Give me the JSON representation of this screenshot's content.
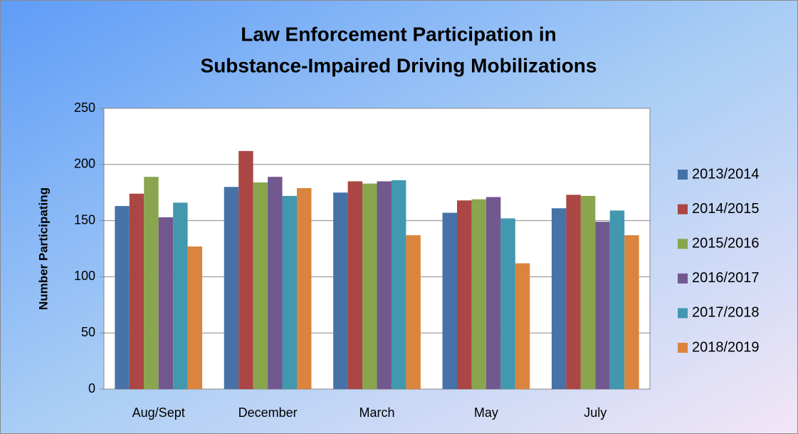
{
  "chart_data": {
    "type": "bar",
    "title": [
      "Law Enforcement Participation in",
      "Substance-Impaired Driving Mobilizations"
    ],
    "y_label": "Number Participating",
    "categories": [
      "Aug/Sept",
      "December",
      "March",
      "May",
      "July"
    ],
    "series": [
      {
        "name": "2013/2014",
        "color": "#4672a8",
        "values": [
          163,
          180,
          175,
          157,
          161
        ]
      },
      {
        "name": "2014/2015",
        "color": "#aa4643",
        "values": [
          174,
          212,
          185,
          168,
          173
        ]
      },
      {
        "name": "2015/2016",
        "color": "#89a54e",
        "values": [
          189,
          184,
          183,
          169,
          172
        ]
      },
      {
        "name": "2016/2017",
        "color": "#71588f",
        "values": [
          153,
          189,
          185,
          171,
          149
        ]
      },
      {
        "name": "2017/2018",
        "color": "#4198af",
        "values": [
          166,
          172,
          186,
          152,
          159
        ]
      },
      {
        "name": "2018/2019",
        "color": "#db843d",
        "values": [
          127,
          179,
          137,
          112,
          137
        ]
      }
    ],
    "ylim": [
      0,
      250
    ],
    "yticks": [
      0,
      50,
      100,
      150,
      200,
      250
    ],
    "grid": true,
    "legend": "right"
  }
}
